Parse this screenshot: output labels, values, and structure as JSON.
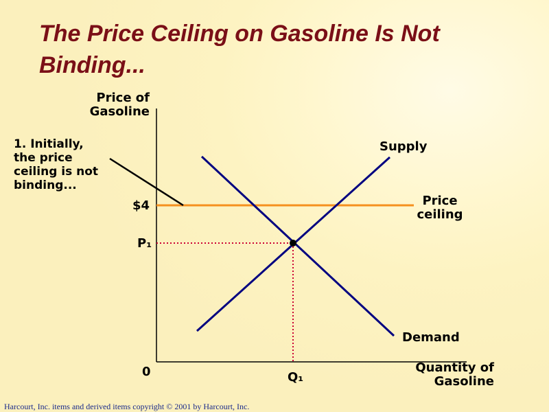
{
  "title": "The Price Ceiling on Gasoline Is Not Binding...",
  "y_axis_label": "Price of Gasoline",
  "x_axis_label": "Quantity of Gasoline",
  "origin_label": "0",
  "price_ceiling_value_label": "$4",
  "equilibrium_price_label": "P₁",
  "equilibrium_quantity_label": "Q₁",
  "supply_label": "Supply",
  "demand_label": "Demand",
  "price_ceiling_label": "Price ceiling",
  "annotation": "1. Initially, the price ceiling is not binding...",
  "footer": "Harcourt, Inc. items and derived items copyright © 2001  by Harcourt, Inc.",
  "colors": {
    "title": "#7a0f17",
    "supply_demand_lines": "#000080",
    "price_ceiling_line": "#f5901e",
    "dotted_guides": "#cc0033",
    "background": "#fdf3c2"
  }
}
